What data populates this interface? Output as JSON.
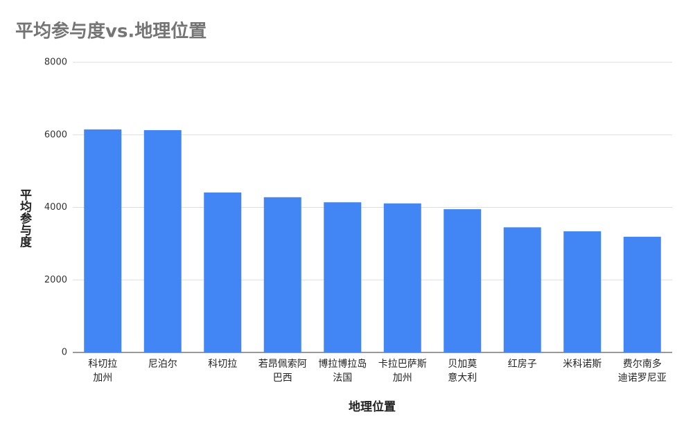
{
  "chart_data": {
    "type": "bar",
    "title": "平均参与度vs.地理位置",
    "x_label": "地理位置",
    "y_label": "平均参与度",
    "categories": [
      [
        "科切拉",
        "加州"
      ],
      [
        "尼泊尔"
      ],
      [
        "科切拉"
      ],
      [
        "若昂佩索阿",
        "巴西"
      ],
      [
        "博拉博拉岛",
        "法国"
      ],
      [
        "卡拉巴萨斯",
        "加州"
      ],
      [
        "贝加莫",
        "意大利"
      ],
      [
        "红房子"
      ],
      [
        "米科诺斯"
      ],
      [
        "费尔南多",
        "迪诺罗尼亚"
      ]
    ],
    "values": [
      6150,
      6130,
      4410,
      4280,
      4140,
      4110,
      3950,
      3450,
      3340,
      3190
    ],
    "color": "#4285f4",
    "ylim": [
      0,
      8000
    ],
    "yticks": [
      0,
      2000,
      4000,
      6000,
      8000
    ],
    "grid": true
  }
}
